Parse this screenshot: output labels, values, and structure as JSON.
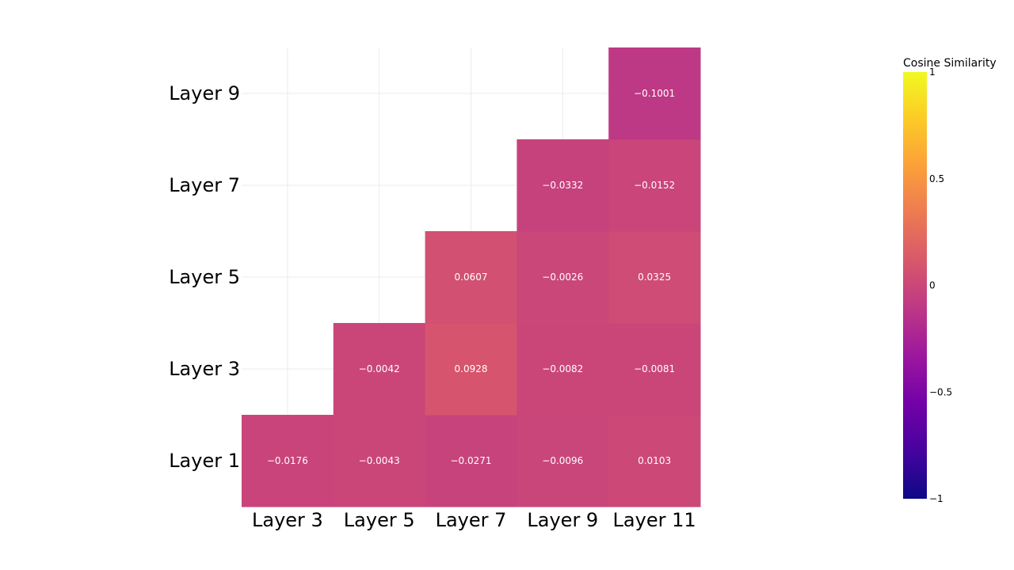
{
  "chart_data": {
    "type": "heatmap",
    "x_categories": [
      "Layer 3",
      "Layer 5",
      "Layer 7",
      "Layer 9",
      "Layer 11"
    ],
    "y_categories": [
      "Layer 1",
      "Layer 3",
      "Layer 5",
      "Layer 7",
      "Layer 9"
    ],
    "cells": [
      {
        "x": "Layer 3",
        "y": "Layer 1",
        "value": -0.0176,
        "label": "−0.0176"
      },
      {
        "x": "Layer 5",
        "y": "Layer 1",
        "value": -0.0043,
        "label": "−0.0043"
      },
      {
        "x": "Layer 7",
        "y": "Layer 1",
        "value": -0.0271,
        "label": "−0.0271"
      },
      {
        "x": "Layer 9",
        "y": "Layer 1",
        "value": -0.0096,
        "label": "−0.0096"
      },
      {
        "x": "Layer 11",
        "y": "Layer 1",
        "value": 0.0103,
        "label": "0.0103"
      },
      {
        "x": "Layer 5",
        "y": "Layer 3",
        "value": -0.0042,
        "label": "−0.0042"
      },
      {
        "x": "Layer 7",
        "y": "Layer 3",
        "value": 0.0928,
        "label": "0.0928"
      },
      {
        "x": "Layer 9",
        "y": "Layer 3",
        "value": -0.0082,
        "label": "−0.0082"
      },
      {
        "x": "Layer 11",
        "y": "Layer 3",
        "value": -0.0081,
        "label": "−0.0081"
      },
      {
        "x": "Layer 7",
        "y": "Layer 5",
        "value": 0.0607,
        "label": "0.0607"
      },
      {
        "x": "Layer 9",
        "y": "Layer 5",
        "value": -0.0026,
        "label": "−0.0026"
      },
      {
        "x": "Layer 11",
        "y": "Layer 5",
        "value": 0.0325,
        "label": "0.0325"
      },
      {
        "x": "Layer 9",
        "y": "Layer 7",
        "value": -0.0332,
        "label": "−0.0332"
      },
      {
        "x": "Layer 11",
        "y": "Layer 7",
        "value": -0.0152,
        "label": "−0.0152"
      },
      {
        "x": "Layer 11",
        "y": "Layer 9",
        "value": -0.1001,
        "label": "−0.1001"
      }
    ],
    "colorbar": {
      "title": "Cosine Similarity",
      "range": [
        -1,
        1
      ],
      "ticks": [
        {
          "value": 1,
          "label": "1"
        },
        {
          "value": 0.5,
          "label": "0.5"
        },
        {
          "value": 0,
          "label": "0"
        },
        {
          "value": -0.5,
          "label": "−0.5"
        },
        {
          "value": -1,
          "label": "−1"
        }
      ],
      "colorscale": "Plasma",
      "colors": [
        "#0d0887",
        "#46039f",
        "#7201a8",
        "#9c179e",
        "#bd3786",
        "#d8576b",
        "#ed7953",
        "#fb9f3a",
        "#fdca26",
        "#f0f921"
      ]
    },
    "grid": true,
    "gridline_color": "#ebebeb",
    "cell_text_color": "#ffffff"
  }
}
